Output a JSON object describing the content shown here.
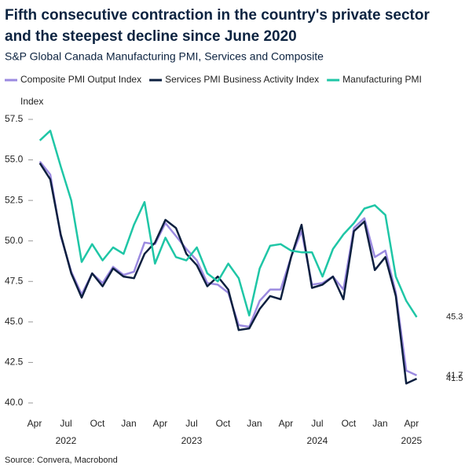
{
  "chart_data": {
    "type": "line",
    "title": [
      "Fifth consecutive contraction in the country's private sector",
      "and the steepest decline since June 2020"
    ],
    "subtitle": "S&P Global Canada Manufacturing PMI, Services and Composite",
    "y_label": "Index",
    "source": "Source: Convera, Macrobond",
    "categories": [
      "Apr",
      null,
      null,
      "Jul",
      null,
      null,
      "Oct",
      null,
      null,
      "Jan",
      null,
      null,
      "Apr",
      null,
      null,
      "Jul",
      null,
      null,
      "Oct",
      null,
      null,
      "Jan",
      null,
      null,
      "Apr",
      null,
      null,
      "Jul",
      null,
      null,
      "Oct",
      null,
      null,
      "Jan",
      null,
      null,
      "Apr"
    ],
    "year_labels": [
      null,
      null,
      null,
      "2022",
      null,
      null,
      null,
      null,
      null,
      null,
      null,
      null,
      null,
      null,
      null,
      "2023",
      null,
      null,
      null,
      null,
      null,
      null,
      null,
      null,
      null,
      null,
      null,
      "2024",
      null,
      null,
      null,
      null,
      null,
      null,
      null,
      null,
      "2025"
    ],
    "ylim": [
      40,
      57.5
    ],
    "yticks": [
      {
        "value": 40,
        "label": "40.0"
      },
      42.5,
      {
        "value": 45,
        "label": "45.0"
      },
      47.5,
      {
        "value": 50,
        "label": "50.0"
      },
      52.5,
      {
        "value": 55,
        "label": "55.0"
      },
      57.5
    ],
    "series": [
      {
        "name": "Composite PMI Output Index",
        "color": "#9b8ae0",
        "label_color": "#8a8a8a",
        "values": [
          54.9,
          54.1,
          50.3,
          48.1,
          46.7,
          48.0,
          47.4,
          48.4,
          47.9,
          48.1,
          49.9,
          49.8,
          51.1,
          50.3,
          49.5,
          48.8,
          47.4,
          47.3,
          46.8,
          44.8,
          44.7,
          46.3,
          47.0,
          47.0,
          49.0,
          50.6,
          47.3,
          47.4,
          47.8,
          47.0,
          50.8,
          51.4,
          49.0,
          49.4,
          46.8,
          42.0,
          41.7
        ]
      },
      {
        "name": "Services PMI Business Activity Index",
        "color": "#0c1f3f",
        "label_color": "#0c1f3f",
        "values": [
          54.8,
          53.8,
          50.4,
          48.0,
          46.5,
          48.0,
          47.2,
          48.3,
          47.8,
          47.7,
          49.2,
          49.9,
          51.3,
          50.8,
          49.2,
          48.5,
          47.2,
          47.8,
          47.0,
          44.5,
          44.6,
          45.8,
          46.6,
          46.4,
          49.0,
          51.0,
          47.1,
          47.3,
          47.8,
          46.4,
          50.6,
          51.2,
          48.2,
          49.0,
          46.6,
          41.2,
          41.5
        ]
      },
      {
        "name": "Manufacturing PMI",
        "color": "#1fc6a6",
        "label_color": "#1fb898",
        "values": [
          56.2,
          56.8,
          54.6,
          52.5,
          48.7,
          49.8,
          48.8,
          49.6,
          49.2,
          51.0,
          52.4,
          48.6,
          50.2,
          49.0,
          48.8,
          49.6,
          48.0,
          47.5,
          48.6,
          47.7,
          45.4,
          48.3,
          49.7,
          49.8,
          49.4,
          49.3,
          49.3,
          47.8,
          49.5,
          50.4,
          51.1,
          52.0,
          52.2,
          51.6,
          47.8,
          46.3,
          45.3
        ]
      }
    ]
  }
}
